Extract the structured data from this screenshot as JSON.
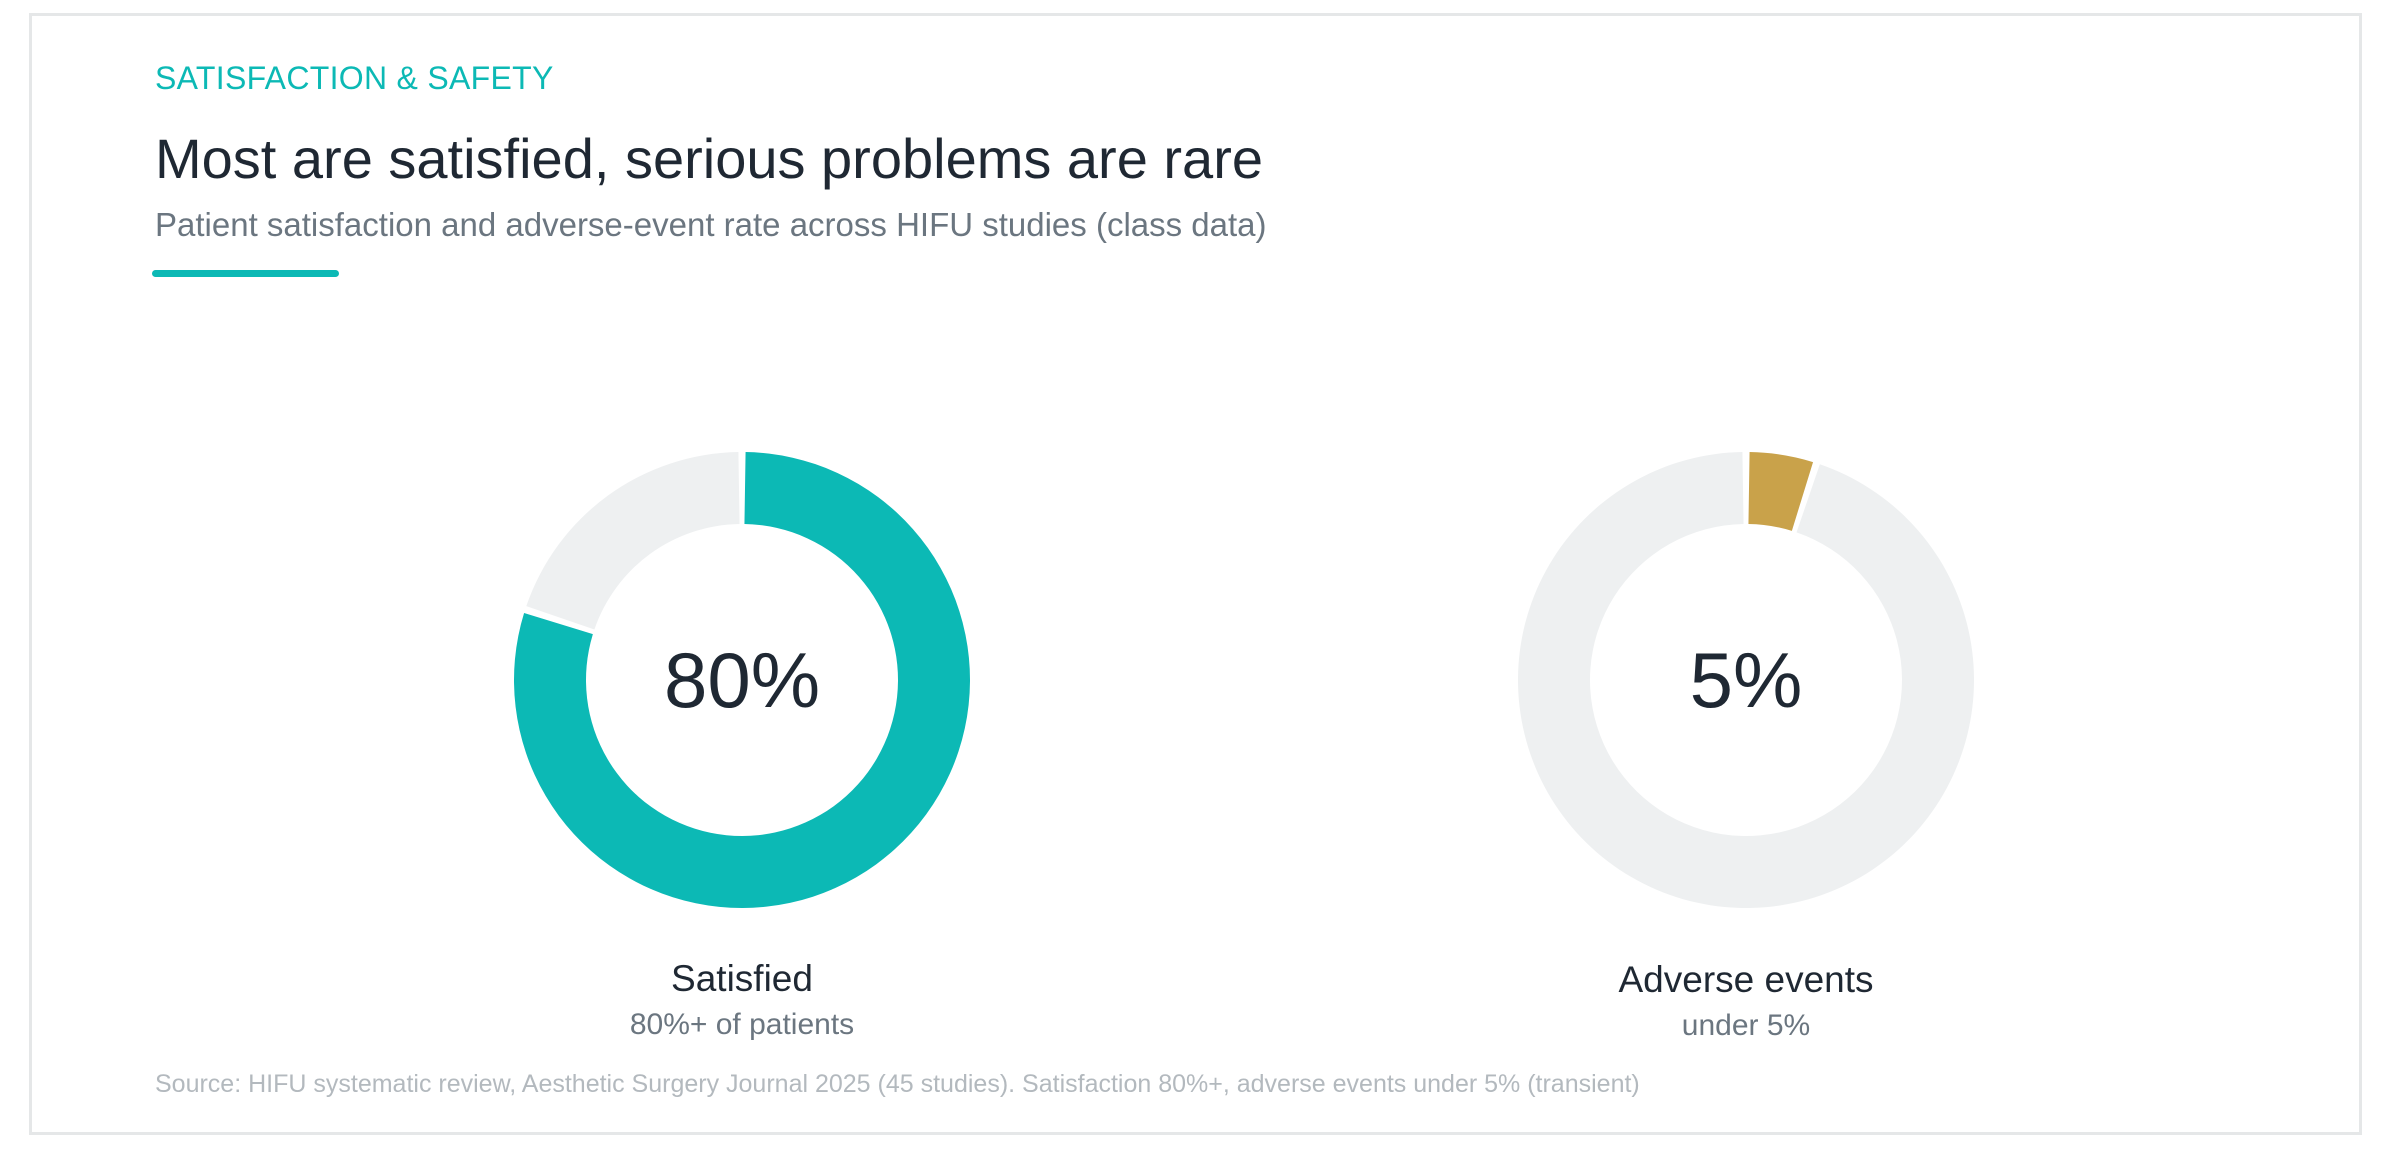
{
  "header": {
    "eyebrow": "SATISFACTION & SAFETY",
    "title": "Most are satisfied, serious problems are rare",
    "subtitle": "Patient satisfaction and adverse-event rate across HIFU studies (class data)"
  },
  "colors": {
    "accent": "#0cb9b5",
    "adverse": "#c9a24a",
    "track": "#eef0f1",
    "text": "#1f2833",
    "muted": "#6b7680"
  },
  "chart_data": [
    {
      "type": "pie",
      "variant": "donut",
      "center_label": "80%",
      "label": "Satisfied",
      "sublabel": "80%+ of patients",
      "value": 80,
      "max": 100,
      "color": "#0cb9b5"
    },
    {
      "type": "pie",
      "variant": "donut",
      "center_label": "5%",
      "label": "Adverse events",
      "sublabel": "under 5%",
      "value": 5,
      "max": 100,
      "color": "#c9a24a"
    }
  ],
  "footer": {
    "source": "Source: HIFU systematic review, Aesthetic Surgery Journal 2025 (45 studies). Satisfaction 80%+, adverse events under 5% (transient)"
  }
}
